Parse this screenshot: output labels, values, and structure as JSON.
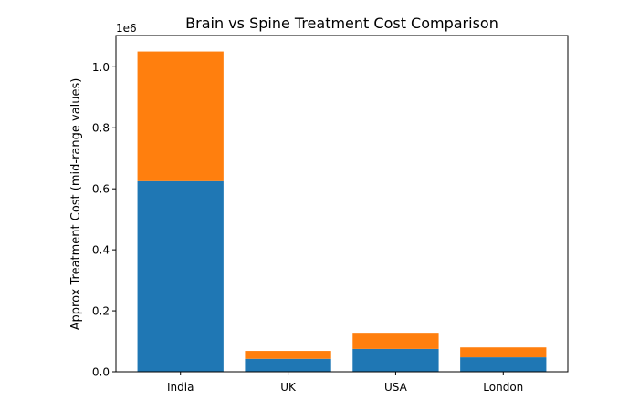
{
  "chart_data": {
    "type": "bar",
    "stacked": true,
    "title": "Brain vs Spine Treatment Cost Comparison",
    "xlabel": "",
    "ylabel": "Approx Treatment Cost (mid-range values)",
    "y_offset_label": "1e6",
    "categories": [
      "India",
      "UK",
      "USA",
      "London"
    ],
    "series": [
      {
        "values": [
          625000,
          42500,
          75000,
          47500
        ],
        "color": "#1f77b4"
      },
      {
        "values": [
          425000,
          26000,
          50000,
          32500
        ],
        "color": "#ff7f0e"
      }
    ],
    "ylim": [
      0,
      1102500
    ],
    "yticks": [
      0,
      200000,
      400000,
      600000,
      800000,
      1000000
    ],
    "ytick_labels": [
      "0.0",
      "0.2",
      "0.4",
      "0.6",
      "0.8",
      "1.0"
    ],
    "grid": false,
    "legend": "none"
  }
}
